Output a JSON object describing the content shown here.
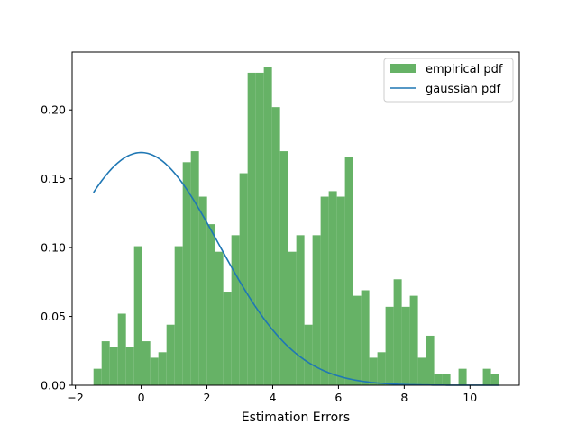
{
  "chart_data": {
    "type": "bar",
    "title": "",
    "xlabel": "Estimation Errors",
    "ylabel": "",
    "xlim": [
      -2.1,
      11.5
    ],
    "ylim": [
      0,
      0.242
    ],
    "xticks": [
      -2,
      0,
      2,
      4,
      6,
      8,
      10
    ],
    "xtick_labels": [
      "−2",
      "0",
      "2",
      "4",
      "6",
      "8",
      "10"
    ],
    "yticks": [
      0,
      0.05,
      0.1,
      0.15,
      0.2
    ],
    "ytick_labels": [
      "0.00",
      "0.05",
      "0.10",
      "0.15",
      "0.20"
    ],
    "grid": false,
    "legend_position": "top-right",
    "series": [
      {
        "name": "empirical pdf",
        "kind": "histogram",
        "color": "#66b266",
        "bin_start": -1.45,
        "bin_width": 0.2467,
        "values": [
          0.012,
          0.032,
          0.028,
          0.052,
          0.028,
          0.101,
          0.032,
          0.02,
          0.024,
          0.044,
          0.101,
          0.162,
          0.17,
          0.137,
          0.117,
          0.097,
          0.068,
          0.109,
          0.154,
          0.227,
          0.227,
          0.231,
          0.202,
          0.17,
          0.097,
          0.109,
          0.044,
          0.109,
          0.137,
          0.141,
          0.137,
          0.166,
          0.065,
          0.069,
          0.02,
          0.024,
          0.057,
          0.077,
          0.057,
          0.065,
          0.02,
          0.036,
          0.008,
          0.008,
          0,
          0.012,
          0,
          0,
          0.012,
          0.008
        ]
      },
      {
        "name": "gaussian pdf",
        "kind": "line",
        "color": "#1f77b4",
        "mean": 0,
        "std": 2.36,
        "x_range": [
          -1.45,
          10.9
        ]
      }
    ]
  }
}
